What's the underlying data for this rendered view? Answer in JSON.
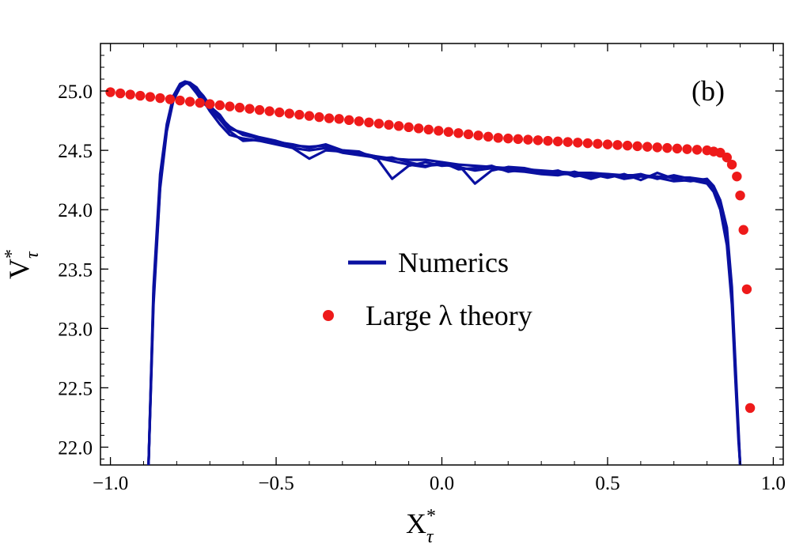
{
  "chart_data": {
    "type": "line",
    "xlabel": "X",
    "xlabel_sup": "*",
    "xlabel_sub": "τ",
    "ylabel": "V",
    "ylabel_sup": "*",
    "ylabel_sub": "τ",
    "panel_label": "(b)",
    "xlim": [
      -1.03,
      1.03
    ],
    "ylim": [
      21.85,
      25.4
    ],
    "xticks": [
      -1.0,
      -0.5,
      0.0,
      0.5,
      1.0
    ],
    "xtick_labels": [
      "−1.0",
      "−0.5",
      "0.0",
      "0.5",
      "1.0"
    ],
    "yticks": [
      22.0,
      22.5,
      23.0,
      23.5,
      24.0,
      24.5,
      25.0
    ],
    "ytick_labels": [
      "22.0",
      "22.5",
      "23.0",
      "23.5",
      "24.0",
      "24.5",
      "25.0"
    ],
    "legend": {
      "placement": "center",
      "entries": [
        {
          "label": "Numerics",
          "style": "line",
          "color": "#0a10a0"
        },
        {
          "label": "Large λ theory",
          "style": "marker",
          "color": "#ee1a1a"
        }
      ]
    },
    "series": [
      {
        "name": "Numerics",
        "color": "#0a10a0",
        "style": "line",
        "runs": [
          {
            "x": [
              -0.885,
              -0.87,
              -0.85,
              -0.83,
              -0.81,
              -0.79,
              -0.775,
              -0.76,
              -0.74,
              -0.72,
              -0.7,
              -0.67,
              -0.64,
              -0.6,
              -0.55,
              -0.5,
              -0.45,
              -0.4,
              -0.35,
              -0.3,
              -0.25,
              -0.2,
              -0.15,
              -0.1,
              -0.05,
              0.0,
              0.05,
              0.1,
              0.15,
              0.2,
              0.25,
              0.3,
              0.35,
              0.4,
              0.45,
              0.5,
              0.55,
              0.6,
              0.65,
              0.7,
              0.75,
              0.8,
              0.82,
              0.84,
              0.86,
              0.875,
              0.885,
              0.895,
              0.9
            ],
            "y": [
              21.85,
              23.3,
              24.25,
              24.7,
              24.95,
              25.05,
              25.08,
              25.07,
              25.02,
              24.96,
              24.88,
              24.78,
              24.7,
              24.63,
              24.6,
              24.57,
              24.55,
              24.52,
              24.55,
              24.5,
              24.48,
              24.45,
              24.43,
              24.42,
              24.42,
              24.4,
              24.38,
              24.37,
              24.36,
              24.35,
              24.34,
              24.33,
              24.32,
              24.31,
              24.31,
              24.3,
              24.29,
              24.29,
              24.28,
              24.27,
              24.27,
              24.25,
              24.18,
              24.05,
              23.8,
              23.3,
              22.7,
              22.1,
              21.85
            ]
          },
          {
            "x": [
              -0.885,
              -0.87,
              -0.85,
              -0.83,
              -0.81,
              -0.79,
              -0.775,
              -0.76,
              -0.74,
              -0.72,
              -0.7,
              -0.67,
              -0.64,
              -0.6,
              -0.55,
              -0.5,
              -0.45,
              -0.4,
              -0.35,
              -0.3,
              -0.25,
              -0.2,
              -0.15,
              -0.1,
              -0.05,
              0.0,
              0.05,
              0.1,
              0.15,
              0.2,
              0.25,
              0.3,
              0.35,
              0.4,
              0.45,
              0.5,
              0.55,
              0.6,
              0.65,
              0.7,
              0.75,
              0.8,
              0.82,
              0.84,
              0.86,
              0.875,
              0.885,
              0.895,
              0.9
            ],
            "y": [
              21.85,
              23.25,
              24.2,
              24.68,
              24.93,
              25.04,
              25.07,
              25.06,
              25.0,
              24.92,
              24.83,
              24.72,
              24.63,
              24.6,
              24.58,
              24.55,
              24.52,
              24.43,
              24.5,
              24.49,
              24.47,
              24.45,
              24.26,
              24.37,
              24.4,
              24.37,
              24.38,
              24.22,
              24.33,
              24.36,
              24.35,
              24.32,
              24.3,
              24.3,
              24.26,
              24.3,
              24.26,
              24.28,
              24.27,
              24.24,
              24.25,
              24.22,
              24.15,
              24.0,
              23.7,
              23.2,
              22.6,
              22.05,
              21.85
            ]
          },
          {
            "x": [
              -0.885,
              -0.87,
              -0.85,
              -0.83,
              -0.81,
              -0.79,
              -0.775,
              -0.76,
              -0.74,
              -0.72,
              -0.7,
              -0.67,
              -0.64,
              -0.6,
              -0.55,
              -0.5,
              -0.45,
              -0.4,
              -0.35,
              -0.3,
              -0.25,
              -0.2,
              -0.15,
              -0.1,
              -0.05,
              0.0,
              0.05,
              0.1,
              0.15,
              0.2,
              0.25,
              0.3,
              0.35,
              0.4,
              0.45,
              0.5,
              0.55,
              0.6,
              0.65,
              0.7,
              0.75,
              0.8,
              0.82,
              0.84,
              0.86,
              0.875,
              0.885,
              0.895,
              0.9
            ],
            "y": [
              21.85,
              23.35,
              24.3,
              24.72,
              24.96,
              25.06,
              25.08,
              25.05,
              24.98,
              24.9,
              24.85,
              24.76,
              24.66,
              24.58,
              24.59,
              24.56,
              24.52,
              24.5,
              24.52,
              24.48,
              24.46,
              24.44,
              24.41,
              24.38,
              24.36,
              24.4,
              24.34,
              24.35,
              24.37,
              24.32,
              24.34,
              24.31,
              24.33,
              24.28,
              24.3,
              24.27,
              24.3,
              24.25,
              24.31,
              24.26,
              24.24,
              24.26,
              24.2,
              24.08,
              23.85,
              23.35,
              22.75,
              22.15,
              21.85
            ]
          },
          {
            "x": [
              -0.885,
              -0.87,
              -0.85,
              -0.83,
              -0.81,
              -0.79,
              -0.775,
              -0.76,
              -0.74,
              -0.72,
              -0.7,
              -0.67,
              -0.64,
              -0.6,
              -0.55,
              -0.5,
              -0.45,
              -0.4,
              -0.35,
              -0.3,
              -0.25,
              -0.2,
              -0.15,
              -0.1,
              -0.05,
              0.0,
              0.05,
              0.1,
              0.15,
              0.2,
              0.25,
              0.3,
              0.35,
              0.4,
              0.45,
              0.5,
              0.55,
              0.6,
              0.65,
              0.7,
              0.75,
              0.8,
              0.82,
              0.84,
              0.86,
              0.875,
              0.885,
              0.895,
              0.9
            ],
            "y": [
              21.85,
              23.2,
              24.18,
              24.66,
              24.92,
              25.03,
              25.06,
              25.07,
              25.03,
              24.95,
              24.87,
              24.8,
              24.68,
              24.65,
              24.61,
              24.58,
              24.54,
              24.53,
              24.54,
              24.5,
              24.49,
              24.43,
              24.44,
              24.4,
              24.37,
              24.38,
              24.36,
              24.33,
              24.35,
              24.33,
              24.32,
              24.3,
              24.29,
              24.32,
              24.28,
              24.29,
              24.28,
              24.3,
              24.26,
              24.29,
              24.26,
              24.23,
              24.17,
              24.02,
              23.75,
              23.25,
              22.65,
              22.1,
              21.85
            ]
          }
        ]
      },
      {
        "name": "Large λ theory",
        "color": "#ee1a1a",
        "style": "markers",
        "x": [
          -1.0,
          -0.97,
          -0.94,
          -0.91,
          -0.88,
          -0.85,
          -0.82,
          -0.79,
          -0.76,
          -0.73,
          -0.7,
          -0.67,
          -0.64,
          -0.61,
          -0.58,
          -0.55,
          -0.52,
          -0.49,
          -0.46,
          -0.43,
          -0.4,
          -0.37,
          -0.34,
          -0.31,
          -0.28,
          -0.25,
          -0.22,
          -0.19,
          -0.16,
          -0.13,
          -0.1,
          -0.07,
          -0.04,
          -0.01,
          0.02,
          0.05,
          0.08,
          0.11,
          0.14,
          0.17,
          0.2,
          0.23,
          0.26,
          0.29,
          0.32,
          0.35,
          0.38,
          0.41,
          0.44,
          0.47,
          0.5,
          0.53,
          0.56,
          0.59,
          0.62,
          0.65,
          0.68,
          0.71,
          0.74,
          0.77,
          0.8,
          0.82,
          0.84,
          0.86,
          0.875,
          0.89,
          0.9,
          0.91,
          0.92,
          0.93
        ],
        "y": [
          24.99,
          24.98,
          24.97,
          24.96,
          24.95,
          24.94,
          24.93,
          24.92,
          24.91,
          24.9,
          24.89,
          24.88,
          24.87,
          24.86,
          24.85,
          24.84,
          24.83,
          24.82,
          24.81,
          24.8,
          24.79,
          24.78,
          24.77,
          24.765,
          24.755,
          24.745,
          24.735,
          24.725,
          24.715,
          24.705,
          24.695,
          24.685,
          24.675,
          24.665,
          24.655,
          24.645,
          24.635,
          24.625,
          24.615,
          24.605,
          24.6,
          24.595,
          24.59,
          24.585,
          24.58,
          24.575,
          24.57,
          24.565,
          24.56,
          24.555,
          24.55,
          24.545,
          24.54,
          24.535,
          24.53,
          24.525,
          24.52,
          24.515,
          24.51,
          24.505,
          24.5,
          24.49,
          24.48,
          24.44,
          24.38,
          24.28,
          24.12,
          23.83,
          23.33,
          22.33
        ]
      }
    ]
  }
}
